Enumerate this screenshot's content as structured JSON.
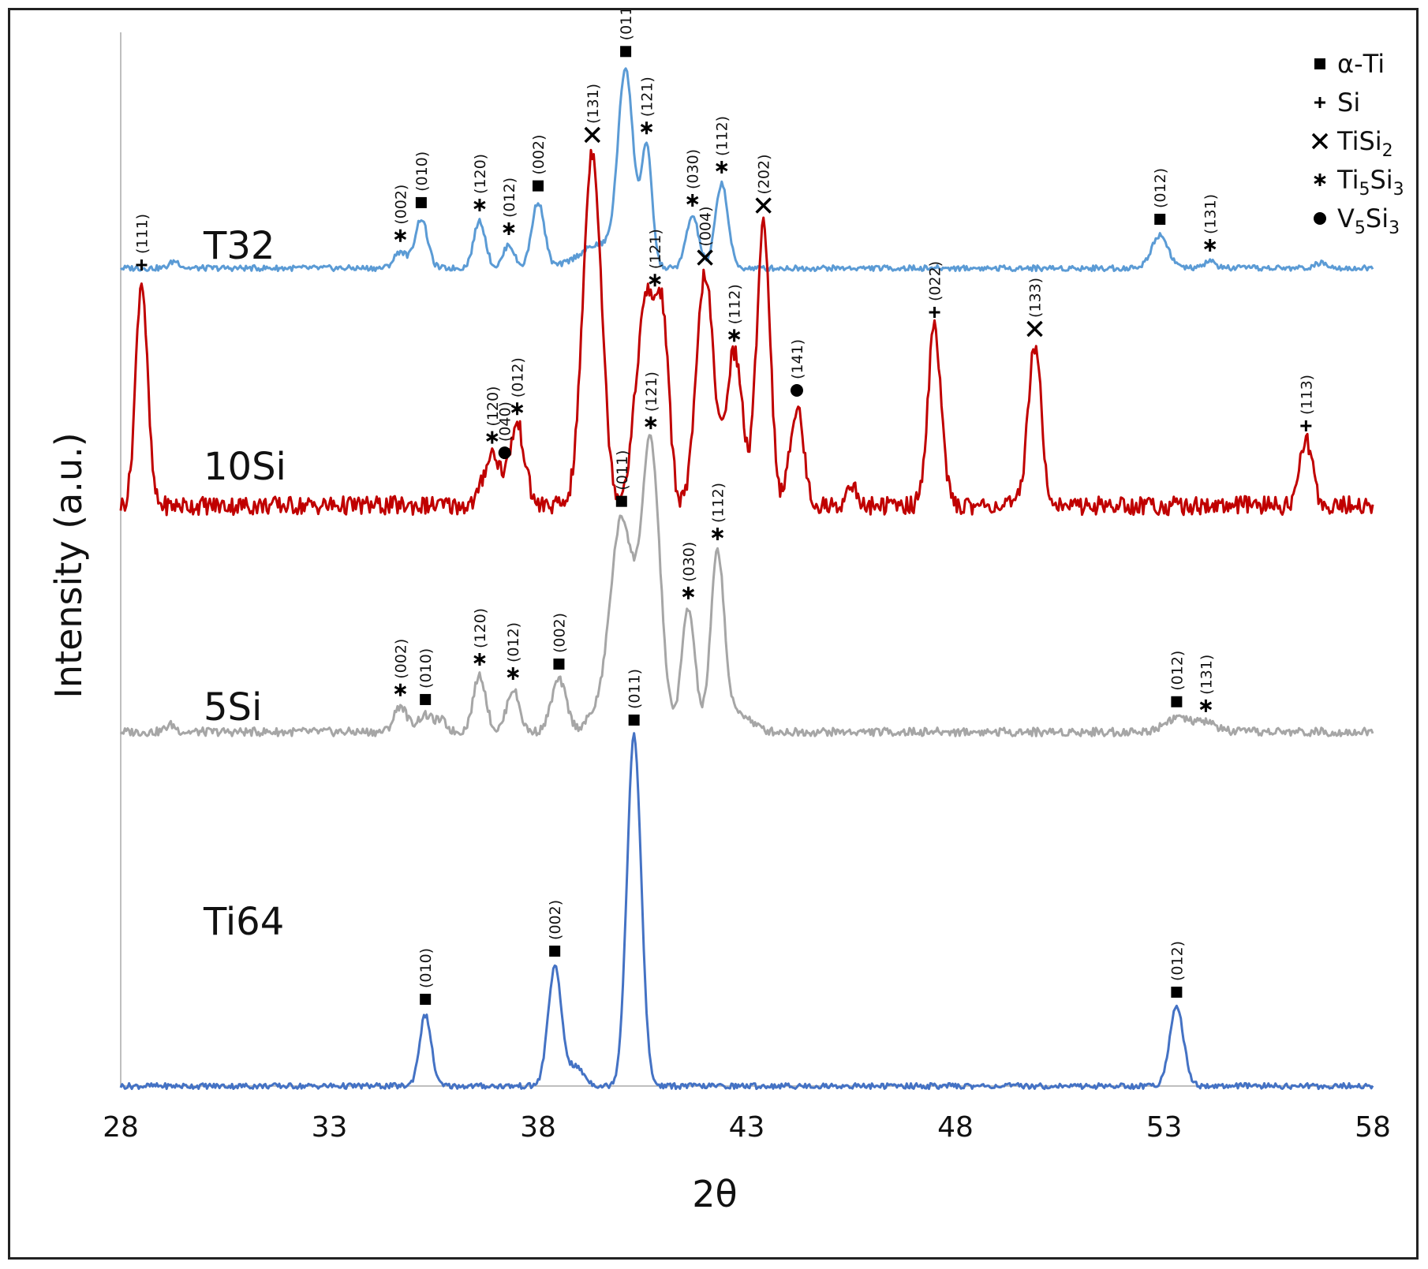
{
  "chart_data": {
    "type": "line",
    "xlabel": "2θ",
    "ylabel": "Intensity (a.u.)",
    "xlim": [
      28,
      58
    ],
    "xticks": [
      28,
      33,
      38,
      43,
      48,
      53,
      58
    ],
    "grid": false,
    "legend": {
      "placement": "top-right",
      "entries": [
        {
          "marker": "square",
          "label": "α-Ti"
        },
        {
          "marker": "plus",
          "label": "Si"
        },
        {
          "marker": "cross",
          "label": "TiSi",
          "sub": "2"
        },
        {
          "marker": "asterisk",
          "label": "Ti",
          "sub": "5",
          "label2": "Si",
          "sub2": "3"
        },
        {
          "marker": "circle",
          "label": "V",
          "sub": "5",
          "label2": "Si",
          "sub2": "3"
        }
      ]
    },
    "series": [
      {
        "name": "T32",
        "color": "#5b9bd5",
        "baseline": 0,
        "noise": 1.2,
        "peaks": [
          [
            29.3,
            3,
            0.12
          ],
          [
            34.7,
            7,
            0.15
          ],
          [
            35.2,
            21,
            0.15
          ],
          [
            36.6,
            20,
            0.14
          ],
          [
            37.3,
            10,
            0.13
          ],
          [
            38.0,
            28,
            0.15
          ],
          [
            39.5,
            10,
            0.5
          ],
          [
            40.1,
            80,
            0.18
          ],
          [
            40.6,
            50,
            0.13
          ],
          [
            41.7,
            22,
            0.15
          ],
          [
            42.4,
            36,
            0.15
          ],
          [
            52.9,
            14,
            0.2
          ],
          [
            54.1,
            3,
            0.13
          ],
          [
            56.8,
            2,
            0.2
          ]
        ],
        "annotations": [
          {
            "x": 34.7,
            "marker": "asterisk",
            "label": "(002)"
          },
          {
            "x": 35.2,
            "marker": "square",
            "label": "(010)"
          },
          {
            "x": 36.6,
            "marker": "asterisk",
            "label": "(120)"
          },
          {
            "x": 37.3,
            "marker": "asterisk",
            "label": "(012)"
          },
          {
            "x": 38.0,
            "marker": "square",
            "label": "(002)"
          },
          {
            "x": 40.1,
            "marker": "square",
            "label": "(011)"
          },
          {
            "x": 40.6,
            "marker": "asterisk",
            "label": "(121)"
          },
          {
            "x": 41.7,
            "marker": "asterisk",
            "label": "(030)"
          },
          {
            "x": 42.4,
            "marker": "asterisk",
            "label": "(112)"
          },
          {
            "x": 52.9,
            "marker": "square",
            "label": "(012)"
          },
          {
            "x": 54.1,
            "marker": "asterisk",
            "label": "(131)"
          }
        ]
      },
      {
        "name": "10Si",
        "color": "#c00000",
        "baseline": 0,
        "noise": 4,
        "peaks": [
          [
            28.5,
            95,
            0.14
          ],
          [
            36.9,
            22,
            0.2
          ],
          [
            37.5,
            34,
            0.18
          ],
          [
            39.3,
            150,
            0.22
          ],
          [
            40.6,
            88,
            0.25
          ],
          [
            41.0,
            60,
            0.15
          ],
          [
            42.0,
            98,
            0.2
          ],
          [
            42.7,
            65,
            0.2
          ],
          [
            43.4,
            120,
            0.16
          ],
          [
            44.2,
            42,
            0.16
          ],
          [
            45.5,
            10,
            0.1
          ],
          [
            47.5,
            75,
            0.16
          ],
          [
            49.9,
            68,
            0.16
          ],
          [
            56.4,
            27,
            0.16
          ]
        ],
        "annotations": [
          {
            "x": 28.5,
            "marker": "plus",
            "label": "(111)"
          },
          {
            "x": 36.9,
            "marker": "asterisk",
            "label": "(120)"
          },
          {
            "x": 37.2,
            "marker": "circle",
            "label": "(040)"
          },
          {
            "x": 37.5,
            "marker": "asterisk",
            "label": "(012)"
          },
          {
            "x": 39.3,
            "marker": "cross",
            "label": "(131)"
          },
          {
            "x": 40.8,
            "marker": "asterisk",
            "label": "(121)"
          },
          {
            "x": 42.0,
            "marker": "cross",
            "label": "(004)"
          },
          {
            "x": 42.7,
            "marker": "asterisk",
            "label": "(112)"
          },
          {
            "x": 43.4,
            "marker": "cross",
            "label": "(202)"
          },
          {
            "x": 44.2,
            "marker": "circle",
            "label": "(141)"
          },
          {
            "x": 47.5,
            "marker": "plus",
            "label": "(022)"
          },
          {
            "x": 49.9,
            "marker": "cross",
            "label": "(133)"
          },
          {
            "x": 56.4,
            "marker": "plus",
            "label": "(113)"
          }
        ]
      },
      {
        "name": "5Si",
        "color": "#a6a6a6",
        "baseline": 0,
        "noise": 1.8,
        "peaks": [
          [
            29.2,
            3,
            0.12
          ],
          [
            34.7,
            11,
            0.15
          ],
          [
            35.3,
            7,
            0.2
          ],
          [
            35.7,
            4,
            0.12
          ],
          [
            36.6,
            24,
            0.15
          ],
          [
            37.4,
            18,
            0.15
          ],
          [
            38.5,
            22,
            0.18
          ],
          [
            39.3,
            5,
            0.2
          ],
          [
            40.0,
            90,
            0.28
          ],
          [
            40.7,
            120,
            0.22
          ],
          [
            41.6,
            52,
            0.16
          ],
          [
            42.3,
            75,
            0.16
          ],
          [
            42.8,
            8,
            0.3
          ],
          [
            53.3,
            6,
            0.3
          ],
          [
            54.0,
            4,
            0.25
          ]
        ],
        "annotations": [
          {
            "x": 34.7,
            "marker": "asterisk",
            "label": "(002)"
          },
          {
            "x": 35.3,
            "marker": "square",
            "label": "(010)"
          },
          {
            "x": 36.6,
            "marker": "asterisk",
            "label": "(120)"
          },
          {
            "x": 37.4,
            "marker": "asterisk",
            "label": "(012)"
          },
          {
            "x": 38.5,
            "marker": "square",
            "label": "(002)"
          },
          {
            "x": 40.0,
            "marker": "square",
            "label": "(011)"
          },
          {
            "x": 40.7,
            "marker": "asterisk",
            "label": "(121)"
          },
          {
            "x": 41.6,
            "marker": "asterisk",
            "label": "(030)"
          },
          {
            "x": 42.3,
            "marker": "asterisk",
            "label": "(112)"
          },
          {
            "x": 53.3,
            "marker": "square",
            "label": "(012)"
          },
          {
            "x": 54.0,
            "marker": "asterisk",
            "label": "(131)"
          }
        ]
      },
      {
        "name": "Ti64",
        "color": "#4472c4",
        "baseline": 0,
        "noise": 1.2,
        "peaks": [
          [
            35.3,
            30,
            0.14
          ],
          [
            38.4,
            50,
            0.16
          ],
          [
            38.9,
            8,
            0.2
          ],
          [
            40.3,
            148,
            0.17
          ],
          [
            53.3,
            33,
            0.17
          ]
        ],
        "annotations": [
          {
            "x": 35.3,
            "marker": "square",
            "label": "(010)"
          },
          {
            "x": 38.4,
            "marker": "square",
            "label": "(002)"
          },
          {
            "x": 40.3,
            "marker": "square",
            "label": "(011)"
          },
          {
            "x": 53.3,
            "marker": "square",
            "label": "(012)"
          }
        ]
      }
    ]
  }
}
